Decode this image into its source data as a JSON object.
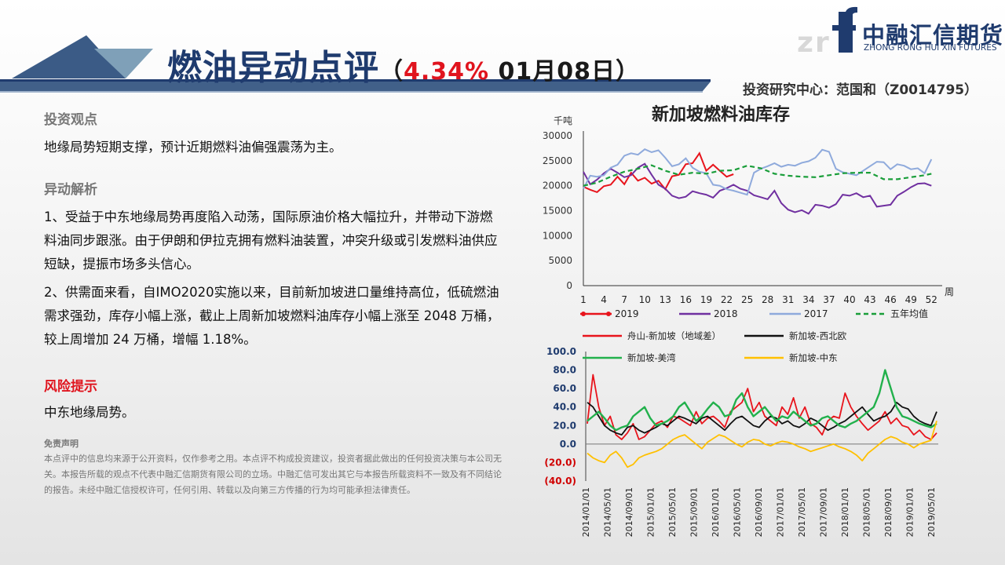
{
  "header": {
    "title_part1": "燃油",
    "title_part2": "异动点评",
    "sub_open": "（",
    "sub_pct": "4.34%",
    "sub_date": " 01月08日）",
    "logo_cn": "中融汇信期货",
    "logo_en": "ZHONG RONG HUI XIN FUTURES",
    "analyst": "投资研究中心：范国和（Z0014795）"
  },
  "content": {
    "view_heading": "投资观点",
    "view_text": "地缘局势短期支撑，预计近期燃料油偏强震荡为主。",
    "analysis_heading": "异动解析",
    "analysis_p1": "1、受益于中东地缘局势再度陷入动荡，国际原油价格大幅拉升，并带动下游燃料油同步跟涨。由于伊朗和伊拉克拥有燃料油装置，冲突升级或引发燃料油供应短缺，提振市场多头信心。",
    "analysis_p2": "2、供需面来看，自IMO2020实施以来，目前新加坡进口量维持高位，低硫燃油需求强劲，库存小幅上涨，截止上周新加坡燃料油库存小幅上涨至 2048 万桶，较上周增加 24 万桶，增幅 1.18%。",
    "risk_heading": "风险提示",
    "risk_text": "中东地缘局势。",
    "disclaimer_heading": "免责声明",
    "disclaimer_text": "本点评中的信息均来源于公开资料，仅作参考之用。本点评不构成投资建议，投资者据此做出的任何投资决策与本公司无关。本报告所载的观点不代表中融汇信期货有限公司的立场。中融汇信可发出其它与本报告所载资料不一致及有不同结论的报告。未经中融汇信授权许可，任何引用、转载以及向第三方传播的行为均可能承担法律责任。"
  },
  "chart_data": [
    {
      "type": "line",
      "title": "新加坡燃料油库存",
      "ylabel": "千吨",
      "xlabel": "周",
      "ylim": [
        0,
        30000
      ],
      "yticks": [
        0,
        5000,
        10000,
        15000,
        20000,
        25000,
        30000
      ],
      "xticks": [
        1,
        4,
        7,
        10,
        13,
        16,
        19,
        22,
        25,
        28,
        31,
        34,
        37,
        40,
        43,
        46,
        49,
        52
      ],
      "xlim": [
        1,
        53
      ],
      "legend_position": "bottom",
      "series": [
        {
          "name": "2019",
          "color": "#e8141c",
          "dash": "none",
          "x": [
            1,
            2,
            3,
            4,
            5,
            6,
            7,
            8,
            9,
            10,
            11,
            12,
            13,
            14,
            15,
            16,
            17,
            18,
            19,
            20,
            21,
            22,
            23
          ],
          "values": [
            19800,
            19200,
            18700,
            19900,
            20200,
            21800,
            20300,
            22600,
            21000,
            21600,
            20400,
            21000,
            19300,
            21900,
            22200,
            24300,
            24500,
            26500,
            23000,
            24200,
            23000,
            21800,
            22300
          ]
        },
        {
          "name": "2018",
          "color": "#7030a0",
          "dash": "none",
          "x": [
            1,
            2,
            3,
            4,
            5,
            6,
            7,
            8,
            9,
            10,
            11,
            12,
            13,
            14,
            15,
            16,
            17,
            18,
            19,
            20,
            21,
            22,
            23,
            24,
            25,
            26,
            27,
            28,
            29,
            30,
            31,
            32,
            33,
            34,
            35,
            36,
            37,
            38,
            39,
            40,
            41,
            42,
            43,
            44,
            45,
            46,
            47,
            48,
            49,
            50,
            51,
            52
          ],
          "values": [
            22800,
            20300,
            21200,
            22500,
            23400,
            22600,
            21700,
            22100,
            23600,
            24400,
            22200,
            20200,
            19400,
            18000,
            17500,
            17800,
            18900,
            18500,
            18200,
            17600,
            19000,
            19500,
            20200,
            19400,
            19000,
            18100,
            17700,
            17300,
            19000,
            16500,
            15200,
            14700,
            15100,
            14400,
            16200,
            16000,
            15600,
            16300,
            18200,
            18000,
            18500,
            17700,
            18000,
            15800,
            16000,
            16200,
            18000,
            18800,
            19700,
            20400,
            20500,
            20000
          ]
        },
        {
          "name": "2017",
          "color": "#8faadc",
          "dash": "none",
          "x": [
            1,
            2,
            3,
            4,
            5,
            6,
            7,
            8,
            9,
            10,
            11,
            12,
            13,
            14,
            15,
            16,
            17,
            18,
            19,
            20,
            21,
            22,
            23,
            24,
            25,
            26,
            27,
            28,
            29,
            30,
            31,
            32,
            33,
            34,
            35,
            36,
            37,
            38,
            39,
            40,
            41,
            42,
            43,
            44,
            45,
            46,
            47,
            48,
            49,
            50,
            51,
            52
          ],
          "values": [
            19400,
            22000,
            21800,
            22100,
            23600,
            24200,
            26000,
            26500,
            26200,
            27300,
            26700,
            27100,
            25600,
            23900,
            24300,
            25500,
            23600,
            22800,
            22500,
            20200,
            20000,
            19300,
            19000,
            18600,
            18200,
            22600,
            23400,
            23900,
            24500,
            23800,
            24200,
            24000,
            24600,
            24900,
            25600,
            27200,
            26800,
            23400,
            22700,
            22400,
            22100,
            23000,
            23900,
            24800,
            24700,
            23300,
            24300,
            24000,
            23300,
            23500,
            22500,
            25300
          ]
        },
        {
          "name": "五年均值",
          "color": "#1a9e3a",
          "dash": "6,4",
          "x": [
            1,
            3,
            5,
            7,
            9,
            11,
            13,
            15,
            17,
            19,
            21,
            23,
            25,
            27,
            29,
            31,
            33,
            35,
            37,
            39,
            41,
            43,
            45,
            47,
            49,
            51,
            52
          ],
          "values": [
            20000,
            20600,
            21800,
            22800,
            23400,
            24100,
            23000,
            22200,
            22600,
            22400,
            23000,
            23100,
            24000,
            23500,
            22400,
            22000,
            21800,
            21700,
            22100,
            22500,
            22600,
            22600,
            21300,
            21300,
            21700,
            22100,
            22400
          ]
        }
      ]
    },
    {
      "type": "line",
      "title": "",
      "yticks": [
        "(40.0)",
        "(20.0)",
        "0.0",
        "20.0",
        "40.0",
        "60.0",
        "80.0",
        "100.0"
      ],
      "ylim": [
        -40,
        100
      ],
      "xticks": [
        "2014/01/01",
        "2014/05/01",
        "2014/09/01",
        "2015/01/01",
        "2015/05/01",
        "2015/09/01",
        "2016/01/01",
        "2016/05/01",
        "2016/09/01",
        "2017/01/01",
        "2017/05/01",
        "2017/09/01",
        "2018/01/01",
        "2018/05/01",
        "2018/09/01",
        "2019/01/01",
        "2019/05/01"
      ],
      "legend_position": "top",
      "series": [
        {
          "name": "舟山-新加坡（地域差）",
          "color": "#e8141c",
          "values": [
            22,
            75,
            40,
            20,
            30,
            10,
            5,
            12,
            22,
            5,
            8,
            15,
            22,
            25,
            18,
            30,
            28,
            24,
            20,
            35,
            22,
            28,
            30,
            25,
            18,
            35,
            40,
            45,
            60,
            35,
            45,
            30,
            25,
            20,
            40,
            32,
            50,
            28,
            40,
            22,
            18,
            10,
            25,
            30,
            28,
            55,
            40,
            30,
            22,
            15,
            20,
            25,
            35,
            22,
            28,
            20,
            18,
            10,
            15,
            8,
            5,
            12
          ]
        },
        {
          "name": "新加坡-西北欧",
          "color": "#111111",
          "values": [
            45,
            40,
            30,
            20,
            15,
            12,
            10,
            18,
            20,
            15,
            12,
            15,
            18,
            22,
            20,
            25,
            30,
            28,
            25,
            22,
            28,
            30,
            25,
            20,
            15,
            22,
            28,
            30,
            25,
            20,
            18,
            25,
            30,
            28,
            22,
            25,
            20,
            18,
            22,
            28,
            25,
            20,
            15,
            18,
            22,
            25,
            30,
            35,
            40,
            32,
            25,
            28,
            30,
            35,
            45,
            40,
            38,
            30,
            25,
            22,
            20,
            35
          ]
        },
        {
          "name": "新加坡-美湾",
          "color": "#22b14c",
          "values": [
            25,
            30,
            35,
            28,
            20,
            15,
            18,
            20,
            30,
            35,
            40,
            28,
            20,
            22,
            25,
            30,
            40,
            45,
            35,
            25,
            30,
            38,
            45,
            40,
            30,
            32,
            48,
            55,
            40,
            30,
            35,
            40,
            32,
            25,
            30,
            28,
            35,
            30,
            25,
            20,
            22,
            28,
            30,
            25,
            20,
            18,
            22,
            25,
            30,
            35,
            40,
            55,
            80,
            60,
            40,
            30,
            28,
            25,
            22,
            20,
            18,
            22
          ]
        },
        {
          "name": "新加坡-中东",
          "color": "#ffc000",
          "values": [
            -10,
            -15,
            -18,
            -20,
            -12,
            -8,
            -15,
            -25,
            -22,
            -15,
            -12,
            -10,
            -8,
            -5,
            0,
            5,
            8,
            10,
            5,
            0,
            -5,
            2,
            6,
            10,
            8,
            4,
            0,
            -3,
            2,
            5,
            4,
            0,
            -2,
            1,
            3,
            2,
            0,
            -3,
            -5,
            -8,
            -6,
            -4,
            -2,
            0,
            -3,
            -5,
            -8,
            -12,
            -18,
            -10,
            -5,
            0,
            5,
            8,
            6,
            2,
            0,
            -4,
            0,
            2,
            4,
            25
          ]
        }
      ]
    }
  ]
}
